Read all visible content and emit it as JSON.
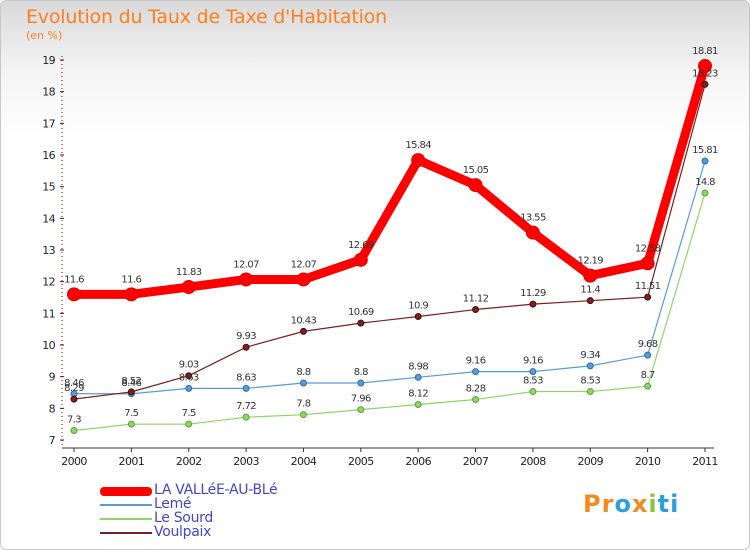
{
  "page": {
    "title": "Evolution du Taux de Taxe d'Habitation",
    "unit": "(en %)"
  },
  "logo": {
    "parts": [
      {
        "text": "Pr",
        "color": "#f28c1e"
      },
      {
        "text": "o",
        "color": "#2f9fd8"
      },
      {
        "text": "x",
        "color": "#f28c1e"
      },
      {
        "text": "i",
        "color": "#8ac43f"
      },
      {
        "text": "ti",
        "color": "#2f9fd8"
      }
    ]
  },
  "chart_data": {
    "type": "line",
    "title": "Evolution du Taux de Taxe d'Habitation",
    "subtitle": "(en %)",
    "xlabel": "",
    "ylabel": "",
    "x": [
      "2000",
      "2001",
      "2002",
      "2003",
      "2004",
      "2005",
      "2006",
      "2007",
      "2008",
      "2009",
      "2010",
      "2011"
    ],
    "yticks": [
      7,
      8,
      9,
      10,
      11,
      12,
      13,
      14,
      15,
      16,
      17,
      18,
      19
    ],
    "ylim": [
      7,
      19
    ],
    "grid": false,
    "legend_position": "bottom-left",
    "series": [
      {
        "name": "LA VALLéE-AU-BLé",
        "color": "#ff0000",
        "values": [
          11.6,
          11.6,
          11.83,
          12.07,
          12.07,
          12.69,
          15.84,
          15.05,
          13.55,
          12.19,
          12.58,
          18.81
        ],
        "labels": [
          "11.6",
          "11.6",
          "11.83",
          "12.07",
          "12.07",
          "12.69",
          "15.84",
          "15.05",
          "13.55",
          "12.19",
          "12.58",
          "18.81"
        ]
      },
      {
        "name": "Lemé",
        "color": "#5b9bd5",
        "values": [
          8.46,
          8.46,
          8.63,
          8.63,
          8.8,
          8.8,
          8.98,
          9.16,
          9.16,
          9.34,
          9.68,
          15.81
        ],
        "labels": [
          "8.46",
          "8.46",
          "8.63",
          "8.63",
          "8.8",
          "8.8",
          "8.98",
          "9.16",
          "9.16",
          "9.34",
          "9.68",
          "15.81"
        ]
      },
      {
        "name": "Le Sourd",
        "color": "#8fd46a",
        "values": [
          7.3,
          7.5,
          7.5,
          7.72,
          7.8,
          7.96,
          8.12,
          8.28,
          8.53,
          8.53,
          8.7,
          14.8
        ],
        "labels": [
          "7.3",
          "7.5",
          "7.5",
          "7.72",
          "7.8",
          "7.96",
          "8.12",
          "8.28",
          "8.53",
          "8.53",
          "8.7",
          "14.8"
        ]
      },
      {
        "name": "Voulpaix",
        "color": "#7a2020",
        "values": [
          8.29,
          8.52,
          9.03,
          9.93,
          10.43,
          10.69,
          10.9,
          11.12,
          11.29,
          11.4,
          11.51,
          18.23
        ],
        "labels": [
          "8.29",
          "8.52",
          "9.03",
          "9.93",
          "10.43",
          "10.69",
          "10.9",
          "11.12",
          "11.29",
          "11.4",
          "11.51",
          "18.23"
        ]
      }
    ]
  }
}
